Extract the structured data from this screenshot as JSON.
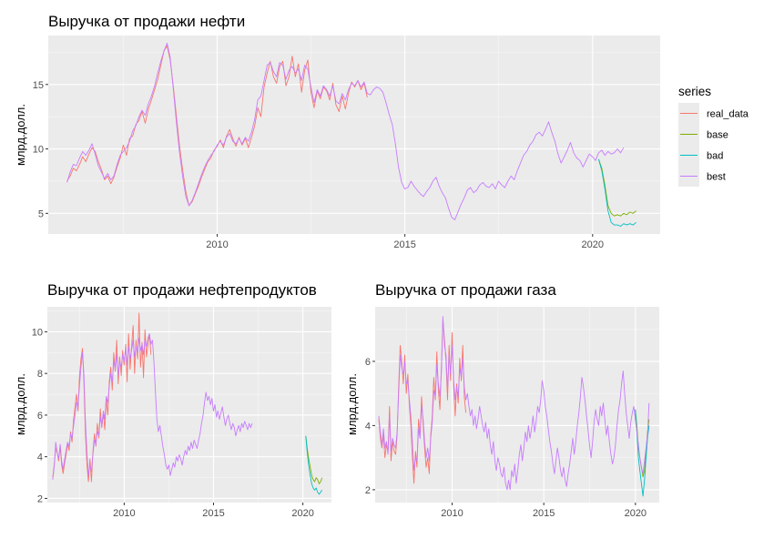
{
  "legend": {
    "title": "series",
    "items": [
      {
        "label": "real_data",
        "color": "#F8766D"
      },
      {
        "label": "base",
        "color": "#7CAE00"
      },
      {
        "label": "bad",
        "color": "#00BFC4"
      },
      {
        "label": "best",
        "color": "#C77CFF"
      }
    ]
  },
  "chart_data": [
    {
      "type": "line",
      "title": "Выручка от продажи нефти",
      "xlabel": "",
      "ylabel": "млрд.долл.",
      "xlim": [
        2005.5,
        2021.8
      ],
      "ylim": [
        3.4,
        18.8
      ],
      "xticks": [
        2010,
        2015,
        2020
      ],
      "yticks": [
        5,
        10,
        15
      ],
      "x_start": 2006.0,
      "x_step": 0.0833,
      "series": [
        {
          "name": "real_data",
          "color": "#F8766D",
          "start_index": 0,
          "values": [
            7.5,
            7.9,
            8.5,
            8.3,
            8.8,
            9.4,
            9.0,
            9.6,
            10.1,
            9.8,
            9.0,
            8.4,
            7.6,
            7.9,
            7.3,
            7.8,
            8.6,
            9.3,
            10.3,
            9.5,
            10.8,
            11.0,
            11.9,
            12.2,
            12.9,
            12.0,
            13.1,
            13.8,
            14.6,
            15.4,
            16.5,
            17.6,
            18.0,
            16.9,
            14.8,
            12.5,
            10.2,
            8.3,
            6.7,
            5.6,
            5.9,
            6.5,
            7.1,
            7.8,
            8.4,
            9.0,
            9.3,
            9.9,
            10.2,
            10.7,
            10.1,
            11.0,
            11.5,
            10.8,
            10.2,
            10.9,
            10.3,
            10.8,
            10.1,
            10.9,
            11.8,
            13.2,
            12.5,
            14.8,
            15.9,
            16.8,
            15.6,
            15.1,
            16.4,
            16.8,
            14.9,
            15.6,
            17.2,
            15.6,
            16.6,
            14.4,
            16.1,
            16.9,
            14.4,
            13.2,
            14.5,
            13.9,
            14.8,
            14.5,
            13.8,
            15.1,
            13.4,
            12.9,
            14.1,
            13.1,
            14.3,
            15.2,
            14.8,
            15.3,
            14.6,
            15.1,
            14.0
          ]
        },
        {
          "name": "base",
          "color": "#7CAE00",
          "start_index": 170,
          "values": [
            9.2,
            8.5,
            7.2,
            5.6,
            5.0,
            4.8,
            4.9,
            4.8,
            5.0,
            4.9,
            5.1,
            5.0,
            5.2
          ]
        },
        {
          "name": "bad",
          "color": "#00BFC4",
          "start_index": 170,
          "values": [
            9.2,
            8.3,
            6.9,
            5.2,
            4.3,
            4.1,
            4.1,
            4.0,
            4.2,
            4.1,
            4.2,
            4.1,
            4.3
          ]
        },
        {
          "name": "best",
          "color": "#C77CFF",
          "start_index": 0,
          "values": [
            7.4,
            8.2,
            8.8,
            8.7,
            9.3,
            9.8,
            9.5,
            9.9,
            10.4,
            9.6,
            8.7,
            8.2,
            7.7,
            8.1,
            7.6,
            7.9,
            8.8,
            9.5,
            9.8,
            10.1,
            10.6,
            11.4,
            11.8,
            12.5,
            13.0,
            12.6,
            13.5,
            14.1,
            14.9,
            15.9,
            16.8,
            17.6,
            18.2,
            17.1,
            14.6,
            12.0,
            9.7,
            7.8,
            6.3,
            5.6,
            6.0,
            6.6,
            7.3,
            8.0,
            8.6,
            9.1,
            9.5,
            9.8,
            10.3,
            10.6,
            10.3,
            10.9,
            11.2,
            10.6,
            10.4,
            10.8,
            10.4,
            10.9,
            10.6,
            11.3,
            12.3,
            13.8,
            14.1,
            15.3,
            16.5,
            16.7,
            16.0,
            15.6,
            16.7,
            16.5,
            15.4,
            16.1,
            16.4,
            15.9,
            16.2,
            15.3,
            16.5,
            16.2,
            14.8,
            13.6,
            14.6,
            14.1,
            14.9,
            14.6,
            14.1,
            14.9,
            13.7,
            13.5,
            14.3,
            13.8,
            14.6,
            15.1,
            14.9,
            15.3,
            14.8,
            15.2,
            14.3,
            14.2,
            14.6,
            14.8,
            14.7,
            14.4,
            13.6,
            12.7,
            11.9,
            10.4,
            8.6,
            7.4,
            6.9,
            7.0,
            7.5,
            7.1,
            6.8,
            6.5,
            6.3,
            6.7,
            7.0,
            7.5,
            7.8,
            7.1,
            6.6,
            6.2,
            5.4,
            4.7,
            4.5,
            5.1,
            5.7,
            6.2,
            6.8,
            7.0,
            6.6,
            6.8,
            7.2,
            7.4,
            7.1,
            7.0,
            7.3,
            6.9,
            7.5,
            7.2,
            7.0,
            7.5,
            7.9,
            7.6,
            8.3,
            8.9,
            9.5,
            9.8,
            10.3,
            10.6,
            11.1,
            11.3,
            11.0,
            11.5,
            12.1,
            11.3,
            10.6,
            9.6,
            8.9,
            9.4,
            9.9,
            10.5,
            9.7,
            9.3,
            9.1,
            8.6,
            9.1,
            9.6,
            9.4,
            9.1,
            9.7,
            9.9,
            9.5,
            9.8,
            9.6,
            9.7,
            10.0,
            9.7,
            10.1
          ]
        }
      ]
    },
    {
      "type": "line",
      "title": "Выручка от продажи нефтепродуктов",
      "xlabel": "",
      "ylabel": "млрд.долл.",
      "xlim": [
        2005.7,
        2021.6
      ],
      "ylim": [
        1.8,
        11.2
      ],
      "xticks": [
        2010,
        2015,
        2020
      ],
      "yticks": [
        2,
        4,
        6,
        8,
        10
      ],
      "x_start": 2006.0,
      "x_step": 0.0833,
      "series": [
        {
          "name": "real_data",
          "color": "#F8766D",
          "start_index": 0,
          "values": [
            3.0,
            3.6,
            4.4,
            4.2,
            3.8,
            4.5,
            3.6,
            3.2,
            3.7,
            4.1,
            4.6,
            4.3,
            5.2,
            4.7,
            5.8,
            6.4,
            7.0,
            6.2,
            7.9,
            8.7,
            9.2,
            7.5,
            5.1,
            3.6,
            2.8,
            3.9,
            2.8,
            4.2,
            5.1,
            4.5,
            5.6,
            4.9,
            6.3,
            5.4,
            6.1,
            5.3,
            6.8,
            6.0,
            7.6,
            8.3,
            7.2,
            9.0,
            8.1,
            9.6,
            7.5,
            8.8,
            7.9,
            9.1,
            8.4,
            9.4,
            7.6,
            9.9,
            8.2,
            9.3,
            10.3,
            8.0,
            9.6,
            8.7,
            10.9,
            8.3,
            9.5,
            7.8,
            10.1,
            8.8,
            9.4,
            9.9,
            8.9
          ]
        },
        {
          "name": "base",
          "color": "#7CAE00",
          "start_index": 170,
          "values": [
            5.0,
            4.4,
            3.9,
            3.5,
            3.1,
            2.9,
            2.8,
            3.0,
            2.9,
            2.7,
            2.8,
            3.0
          ]
        },
        {
          "name": "bad",
          "color": "#00BFC4",
          "start_index": 170,
          "values": [
            5.0,
            4.2,
            3.6,
            3.1,
            2.7,
            2.5,
            2.4,
            2.5,
            2.3,
            2.2,
            2.3,
            2.4
          ]
        },
        {
          "name": "best",
          "color": "#C77CFF",
          "start_index": 0,
          "values": [
            2.9,
            3.5,
            4.7,
            4.2,
            3.9,
            4.6,
            3.8,
            3.4,
            3.9,
            4.3,
            4.7,
            4.5,
            5.1,
            4.9,
            5.5,
            6.0,
            6.6,
            6.4,
            7.4,
            8.3,
            9.0,
            7.9,
            5.7,
            4.2,
            3.1,
            3.6,
            3.3,
            4.1,
            4.8,
            4.6,
            5.2,
            5.0,
            5.9,
            5.5,
            6.2,
            5.8,
            6.9,
            6.6,
            7.4,
            8.0,
            7.6,
            8.6,
            8.2,
            8.9,
            7.9,
            8.6,
            8.3,
            8.9,
            8.6,
            9.2,
            8.4,
            9.3,
            8.7,
            9.1,
            9.6,
            8.8,
            9.3,
            9.0,
            9.7,
            9.1,
            9.4,
            8.9,
            9.6,
            9.3,
            9.7,
            9.9,
            9.4,
            9.6,
            8.6,
            7.1,
            5.8,
            5.2,
            5.5,
            5.0,
            4.5,
            4.1,
            3.6,
            3.4,
            3.6,
            3.1,
            3.4,
            3.7,
            3.5,
            4.0,
            3.8,
            4.1,
            3.9,
            3.6,
            4.0,
            4.3,
            4.1,
            4.5,
            4.3,
            4.7,
            4.4,
            4.8,
            4.6,
            4.4,
            4.8,
            5.1,
            5.6,
            6.0,
            6.6,
            7.1,
            6.7,
            6.9,
            6.5,
            6.8,
            6.2,
            6.5,
            5.9,
            6.2,
            5.8,
            6.1,
            6.4,
            5.9,
            5.5,
            5.8,
            6.0,
            5.6,
            5.3,
            5.6,
            5.4,
            5.0,
            5.3,
            5.5,
            5.2,
            5.6,
            5.4,
            5.7,
            5.5,
            5.3,
            5.6,
            5.4,
            5.6
          ]
        }
      ]
    },
    {
      "type": "line",
      "title": "Выручка от продажи газа",
      "xlabel": "",
      "ylabel": "млрд.долл.",
      "xlim": [
        2005.8,
        2021.3
      ],
      "ylim": [
        1.6,
        7.7
      ],
      "xticks": [
        2010,
        2015,
        2020
      ],
      "yticks": [
        2,
        4,
        6
      ],
      "x_start": 2006.0,
      "x_step": 0.0833,
      "series": [
        {
          "name": "real_data",
          "color": "#F8766D",
          "start_index": 0,
          "values": [
            4.2,
            3.6,
            3.3,
            3.7,
            3.0,
            3.4,
            3.2,
            4.6,
            2.9,
            3.5,
            3.2,
            3.1,
            3.7,
            5.2,
            6.5,
            6.0,
            5.3,
            6.2,
            5.0,
            5.6,
            4.6,
            4.0,
            3.0,
            2.2,
            3.2,
            2.7,
            4.2,
            3.7,
            4.9,
            4.0,
            3.3,
            2.7,
            3.0,
            2.5,
            3.7,
            4.3,
            5.5,
            4.8,
            6.3,
            5.1,
            4.5,
            5.9,
            7.3,
            6.7,
            6.0,
            4.8,
            6.5,
            5.4,
            6.9,
            5.2,
            4.3,
            5.3,
            4.7,
            6.1,
            5.4,
            6.5,
            4.9,
            4.4
          ]
        },
        {
          "name": "base",
          "color": "#7CAE00",
          "start_index": 168,
          "values": [
            4.5,
            4.0,
            3.3,
            3.0,
            2.7,
            2.4,
            2.6,
            3.2,
            3.8,
            4.2
          ]
        },
        {
          "name": "bad",
          "color": "#00BFC4",
          "start_index": 168,
          "values": [
            4.5,
            3.8,
            3.0,
            2.6,
            2.2,
            1.8,
            2.3,
            3.0,
            3.6,
            4.0
          ]
        },
        {
          "name": "best",
          "color": "#C77CFF",
          "start_index": 0,
          "values": [
            4.3,
            3.8,
            3.4,
            3.9,
            3.3,
            3.5,
            3.1,
            4.3,
            3.2,
            3.6,
            3.4,
            3.3,
            3.8,
            5.0,
            6.2,
            5.8,
            5.6,
            6.0,
            5.3,
            5.4,
            4.8,
            4.3,
            3.5,
            2.6,
            3.0,
            2.9,
            3.9,
            3.6,
            4.6,
            4.2,
            3.5,
            3.0,
            3.3,
            2.9,
            3.6,
            4.1,
            5.1,
            4.9,
            5.9,
            5.3,
            4.9,
            5.7,
            7.4,
            6.5,
            6.2,
            5.1,
            6.2,
            5.6,
            6.5,
            5.4,
            4.8,
            5.2,
            4.9,
            5.8,
            5.5,
            6.1,
            5.2,
            4.8,
            5.0,
            4.6,
            4.3,
            4.5,
            4.0,
            4.3,
            3.9,
            4.2,
            4.6,
            4.3,
            4.0,
            3.8,
            4.1,
            3.6,
            3.9,
            3.4,
            3.1,
            3.5,
            2.9,
            2.6,
            3.0,
            2.8,
            2.5,
            2.4,
            2.7,
            2.2,
            2.0,
            2.3,
            2.0,
            2.6,
            2.4,
            2.8,
            2.2,
            2.6,
            3.1,
            3.4,
            2.9,
            3.3,
            3.8,
            3.5,
            4.0,
            3.6,
            3.9,
            4.3,
            3.8,
            4.1,
            4.6,
            4.4,
            4.8,
            5.4,
            5.1,
            4.6,
            4.3,
            3.9,
            3.5,
            3.2,
            2.8,
            2.5,
            2.9,
            3.3,
            3.0,
            2.6,
            2.4,
            2.7,
            2.3,
            2.1,
            2.5,
            2.8,
            3.2,
            3.6,
            3.1,
            3.5,
            4.0,
            4.4,
            4.9,
            5.5,
            5.2,
            4.8,
            4.3,
            3.9,
            3.4,
            3.0,
            3.5,
            4.1,
            4.5,
            4.2,
            4.0,
            4.6,
            4.3,
            4.7,
            4.2,
            3.7,
            4.0,
            3.5,
            3.1,
            2.8,
            3.0,
            3.4,
            4.0,
            4.5,
            4.8,
            5.3,
            5.7,
            5.0,
            4.4,
            4.0,
            3.6,
            4.1,
            4.4,
            4.6,
            4.2,
            3.8,
            3.4,
            3.0,
            2.7,
            2.5,
            2.9,
            3.3,
            3.7,
            4.7
          ]
        }
      ]
    }
  ]
}
